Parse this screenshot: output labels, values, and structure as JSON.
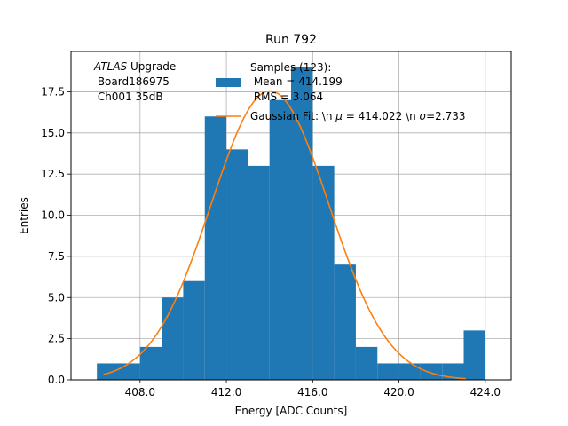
{
  "chart_data": {
    "type": "bar",
    "title": "Run 792",
    "xlabel": "Energy [ADC Counts]",
    "ylabel": "Entries",
    "xlim": [
      404.8,
      425.2
    ],
    "ylim": [
      0,
      19.95
    ],
    "grid": true,
    "x_ticks": [
      {
        "value": 408,
        "label": "408.0"
      },
      {
        "value": 412,
        "label": "412.0"
      },
      {
        "value": 416,
        "label": "416.0"
      },
      {
        "value": 420,
        "label": "420.0"
      },
      {
        "value": 424,
        "label": "424.0"
      }
    ],
    "y_ticks": [
      {
        "value": 0,
        "label": "0.0"
      },
      {
        "value": 2.5,
        "label": "2.5"
      },
      {
        "value": 5,
        "label": "5.0"
      },
      {
        "value": 7.5,
        "label": "7.5"
      },
      {
        "value": 10,
        "label": "10.0"
      },
      {
        "value": 12.5,
        "label": "12.5"
      },
      {
        "value": 15,
        "label": "15.0"
      },
      {
        "value": 17.5,
        "label": "17.5"
      }
    ],
    "histogram": {
      "name": "Samples (123):\n Mean = 414.199\n RMS = 3.064",
      "color": "#1f77b4",
      "bin_edges": [
        406,
        407,
        408,
        409,
        410,
        411,
        412,
        413,
        414,
        415,
        416,
        417,
        418,
        419,
        420,
        421,
        422,
        423,
        424
      ],
      "counts": [
        1,
        1,
        2,
        5,
        6,
        16,
        14,
        13,
        17,
        19,
        13,
        7,
        2,
        1,
        1,
        1,
        1,
        3
      ]
    },
    "fit": {
      "name": "Gaussian Fit: \\n $\\mu$ = 414.022 \\n $\\sigma$=2.733",
      "color": "#ff7f0e",
      "mu": 414.022,
      "sigma": 2.733,
      "amplitude": 17.55,
      "x_range": [
        406.3,
        423.1
      ]
    },
    "legend_position": "top-center",
    "annotation": {
      "atlas": "ATLAS",
      "line1_rest": " Upgrade",
      "line2": " Board186975",
      "line3": " Ch001 35dB"
    },
    "legend_labels": {
      "samples_line1": "Samples (123):",
      "samples_line2": " Mean = 414.199",
      "samples_line3": " RMS = 3.064",
      "fit_prefix": "Gaussian Fit: \\n ",
      "fit_mu_symbol": "μ",
      "fit_mid": " = 414.022 \\n ",
      "fit_sigma_symbol": "σ",
      "fit_suffix": "=2.733"
    }
  }
}
